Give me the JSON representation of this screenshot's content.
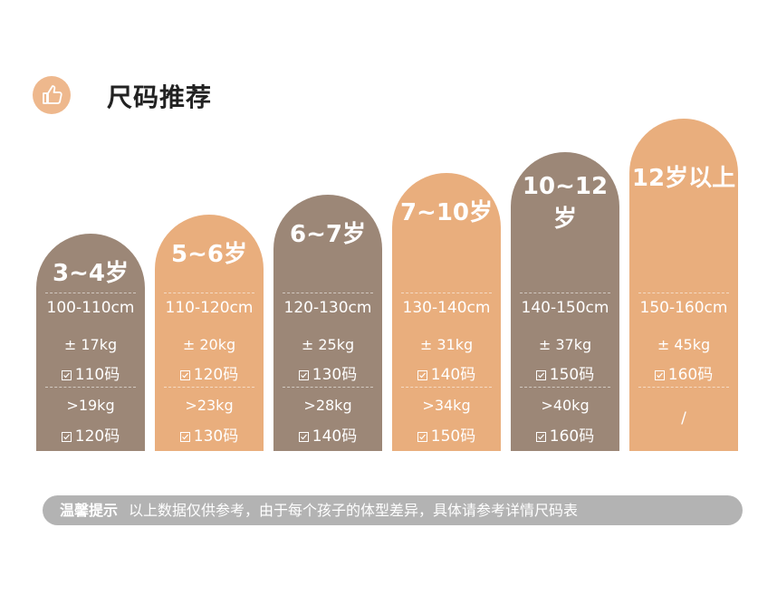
{
  "header": {
    "title": "尺码推荐"
  },
  "columns": [
    {
      "age": "3~4岁",
      "height": "100-110cm",
      "weight1": "± 17kg",
      "size1": "110码",
      "weight2": ">19kg",
      "size2": "120码"
    },
    {
      "age": "5~6岁",
      "height": "110-120cm",
      "weight1": "± 20kg",
      "size1": "120码",
      "weight2": ">23kg",
      "size2": "130码"
    },
    {
      "age": "6~7岁",
      "height": "120-130cm",
      "weight1": "± 25kg",
      "size1": "130码",
      "weight2": ">28kg",
      "size2": "140码"
    },
    {
      "age": "7~10岁",
      "height": "130-140cm",
      "weight1": "± 31kg",
      "size1": "140码",
      "weight2": ">34kg",
      "size2": "150码"
    },
    {
      "age": "10~12岁",
      "height": "140-150cm",
      "weight1": "± 37kg",
      "size1": "150码",
      "weight2": ">40kg",
      "size2": "160码"
    },
    {
      "age": "12岁以上",
      "height": "150-160cm",
      "weight1": "± 45kg",
      "size1": "160码",
      "weight2": "/"
    }
  ],
  "notice": {
    "label": "温馨提示",
    "text": "以上数据仅供参考，由于每个孩子的体型差异，具体请参考详情尺码表"
  }
}
